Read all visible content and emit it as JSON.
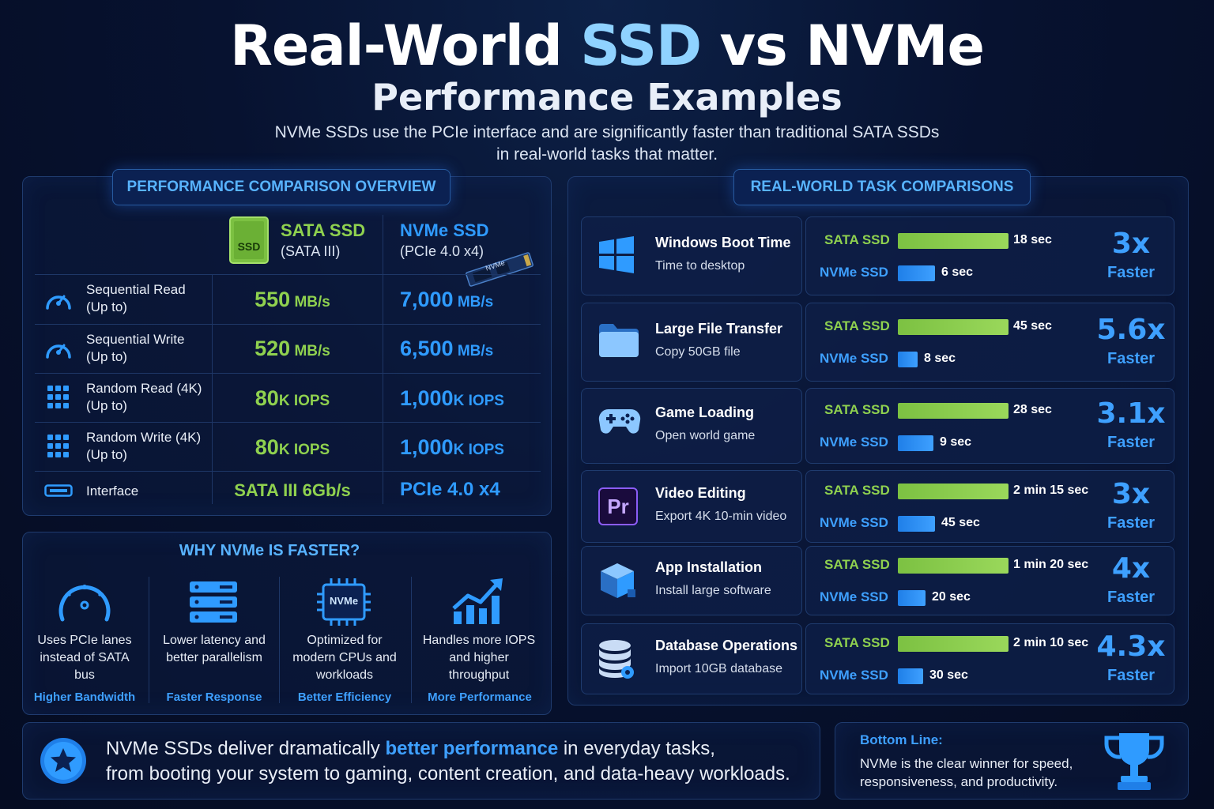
{
  "header": {
    "title_pre": "Real-World ",
    "title_accent": "SSD",
    "title_post": " vs NVMe",
    "title_line2": "Performance Examples",
    "subtitle_line1": "NVMe SSDs use the PCIe interface and are significantly faster than traditional SATA SSDs",
    "subtitle_line2": "in real-world tasks that matter."
  },
  "overview": {
    "heading": "PERFORMANCE COMPARISON OVERVIEW",
    "sata": {
      "name": "SATA SSD",
      "sub": "(SATA III)",
      "chip_label": "SSD"
    },
    "nvme": {
      "name": "NVMe SSD",
      "sub": "(PCIe 4.0 x4)",
      "chip_label": "NVMe"
    },
    "rows": [
      {
        "icon": "speedometer-icon",
        "label": "Sequential Read",
        "note": "(Up to)",
        "sata_num": "550",
        "sata_unit": " MB/s",
        "nvme_num": "7,000",
        "nvme_unit": " MB/s"
      },
      {
        "icon": "speedometer-icon",
        "label": "Sequential Write",
        "note": "(Up to)",
        "sata_num": "520",
        "sata_unit": " MB/s",
        "nvme_num": "6,500",
        "nvme_unit": " MB/s"
      },
      {
        "icon": "grid-icon",
        "label": "Random Read (4K)",
        "note": "(Up to)",
        "sata_num": "80",
        "sata_unit": "K IOPS",
        "nvme_num": "1,000",
        "nvme_unit": "K IOPS"
      },
      {
        "icon": "grid-icon",
        "label": "Random Write (4K)",
        "note": "(Up to)",
        "sata_num": "80",
        "sata_unit": "K IOPS",
        "nvme_num": "1,000",
        "nvme_unit": "K IOPS"
      },
      {
        "icon": "interface-icon",
        "label": "Interface",
        "note": "",
        "sata_num": "SATA III 6Gb/s",
        "sata_unit": "",
        "nvme_num": "PCIe 4.0 x4",
        "nvme_unit": ""
      }
    ]
  },
  "why": {
    "heading": "WHY NVMe IS FASTER?",
    "items": [
      {
        "icon": "speedometer-icon",
        "text": "Uses PCIe lanes instead of SATA bus",
        "tag": "Higher Bandwidth"
      },
      {
        "icon": "server-stack-icon",
        "text": "Lower latency and better parallelism",
        "tag": "Faster Response"
      },
      {
        "icon": "chip-icon",
        "chip_label": "NVMe",
        "text": "Optimized for modern CPUs and workloads",
        "tag": "Better Efficiency"
      },
      {
        "icon": "growth-chart-icon",
        "text": "Handles more IOPS and higher throughput",
        "tag": "More Performance"
      }
    ]
  },
  "tasks": {
    "heading": "REAL-WORLD TASK COMPARISONS",
    "sata_label": "SATA SSD",
    "nvme_label": "NVMe SSD",
    "faster_label": "Faster",
    "items": [
      {
        "icon": "windows-icon",
        "title": "Windows Boot Time",
        "sub": "Time to desktop",
        "sata_time": "18 sec",
        "sata_seconds": 18,
        "nvme_time": "6 sec",
        "nvme_seconds": 6,
        "multiplier": "3x"
      },
      {
        "icon": "folder-icon",
        "title": "Large File Transfer",
        "sub": "Copy 50GB file",
        "sata_time": "45 sec",
        "sata_seconds": 45,
        "nvme_time": "8 sec",
        "nvme_seconds": 8,
        "multiplier": "5.6x"
      },
      {
        "icon": "gamepad-icon",
        "title": "Game Loading",
        "sub": "Open world game",
        "sata_time": "28 sec",
        "sata_seconds": 28,
        "nvme_time": "9 sec",
        "nvme_seconds": 9,
        "multiplier": "3.1x"
      },
      {
        "icon": "premiere-icon",
        "icon_text": "Pr",
        "title": "Video Editing",
        "sub": "Export 4K 10-min video",
        "sata_time": "2 min 15 sec",
        "sata_seconds": 135,
        "nvme_time": "45 sec",
        "nvme_seconds": 45,
        "multiplier": "3x"
      },
      {
        "icon": "package-icon",
        "title": "App Installation",
        "sub": "Install large software",
        "sata_time": "1 min 20 sec",
        "sata_seconds": 80,
        "nvme_time": "20 sec",
        "nvme_seconds": 20,
        "multiplier": "4x"
      },
      {
        "icon": "database-icon",
        "title": "Database Operations",
        "sub": "Import 10GB database",
        "sata_time": "2 min 10 sec",
        "sata_seconds": 130,
        "nvme_time": "30 sec",
        "nvme_seconds": 30,
        "multiplier": "4.3x"
      }
    ]
  },
  "bottom": {
    "msg_pre": "NVMe SSDs deliver dramatically ",
    "msg_highlight": "better performance",
    "msg_post_line1": " in everyday tasks,",
    "msg_line2": "from booting your system to gaming, content creation, and data-heavy workloads.",
    "line_title": "Bottom Line:",
    "line_text_1": "NVMe is the clear winner for speed,",
    "line_text_2": "responsiveness, and productivity."
  },
  "colors": {
    "sata": "#8fd14f",
    "nvme": "#3ea0ff",
    "background": "#071230"
  }
}
